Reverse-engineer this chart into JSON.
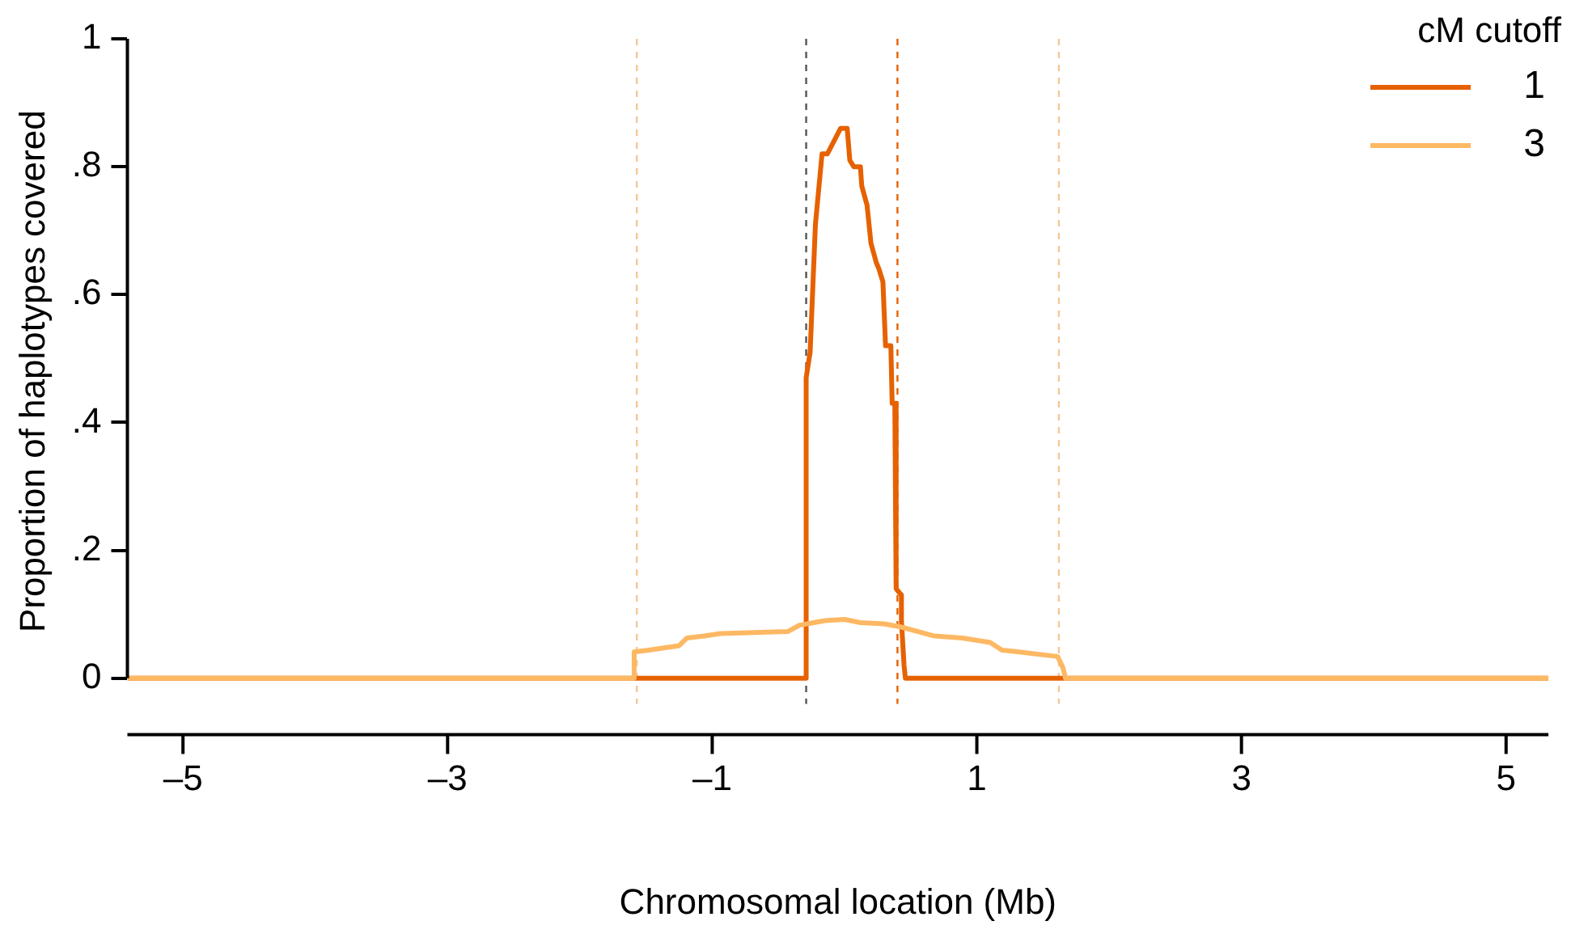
{
  "chart_data": {
    "type": "line",
    "xlabel": "Chromosomal location (Mb)",
    "ylabel": "Proportion of haplotypes covered",
    "legend_title": "cM cutoff",
    "xlim": [
      -5.42,
      5.32
    ],
    "xticks": [
      {
        "value": -5,
        "label": "–5"
      },
      {
        "value": -3,
        "label": "–3"
      },
      {
        "value": -1,
        "label": "–1"
      },
      1,
      3,
      5
    ],
    "ylim": [
      -0.04,
      1
    ],
    "yticks": [
      0,
      {
        "value": 0.2,
        "label": ".2"
      },
      {
        "value": 0.4,
        "label": ".4"
      },
      {
        "value": 0.6,
        "label": ".6"
      },
      {
        "value": 0.8,
        "label": ".8"
      },
      1
    ],
    "series": [
      {
        "name": "1",
        "color": "#e66101",
        "x": [
          -5.42,
          -0.29,
          -0.29,
          -0.26,
          -0.22,
          -0.17,
          -0.13,
          -0.08,
          -0.03,
          0.02,
          0.04,
          0.07,
          0.12,
          0.13,
          0.17,
          0.2,
          0.24,
          0.26,
          0.29,
          0.3,
          0.31,
          0.35,
          0.36,
          0.38,
          0.39,
          0.43,
          0.43,
          0.45,
          0.46,
          5.32
        ],
        "values": [
          0,
          0,
          0.47,
          0.51,
          0.71,
          0.82,
          0.82,
          0.84,
          0.86,
          0.86,
          0.81,
          0.8,
          0.8,
          0.77,
          0.74,
          0.68,
          0.65,
          0.64,
          0.62,
          0.57,
          0.52,
          0.52,
          0.43,
          0.43,
          0.14,
          0.13,
          0.09,
          0.02,
          0,
          0
        ]
      },
      {
        "name": "3",
        "color": "#fdb863",
        "x": [
          -5.42,
          -1.59,
          -1.59,
          -1.48,
          -1.25,
          -1.19,
          -1.06,
          -0.94,
          -0.43,
          -0.34,
          -0.15,
          0.0,
          0.12,
          0.3,
          0.43,
          0.68,
          0.89,
          1.1,
          1.19,
          1.32,
          1.61,
          1.65,
          1.67,
          5.32
        ],
        "values": [
          0,
          0,
          0.041,
          0.044,
          0.051,
          0.063,
          0.066,
          0.07,
          0.073,
          0.083,
          0.09,
          0.092,
          0.087,
          0.085,
          0.08,
          0.066,
          0.063,
          0.056,
          0.044,
          0.041,
          0.034,
          0.017,
          0,
          0
        ]
      }
    ],
    "ref_lines": [
      {
        "axis": "x",
        "value": -1.57,
        "color": "#f5c79a",
        "line_style": "dashed"
      },
      {
        "axis": "x",
        "value": -0.29,
        "color": "#555555",
        "line_style": "dashed"
      },
      {
        "axis": "x",
        "value": 0.4,
        "color": "#e66101",
        "line_style": "dashed"
      },
      {
        "axis": "x",
        "value": 1.62,
        "color": "#f5c79a",
        "line_style": "dashed"
      }
    ],
    "grid": false,
    "legend": "top right",
    "marker": "none",
    "line_style": "solid"
  }
}
